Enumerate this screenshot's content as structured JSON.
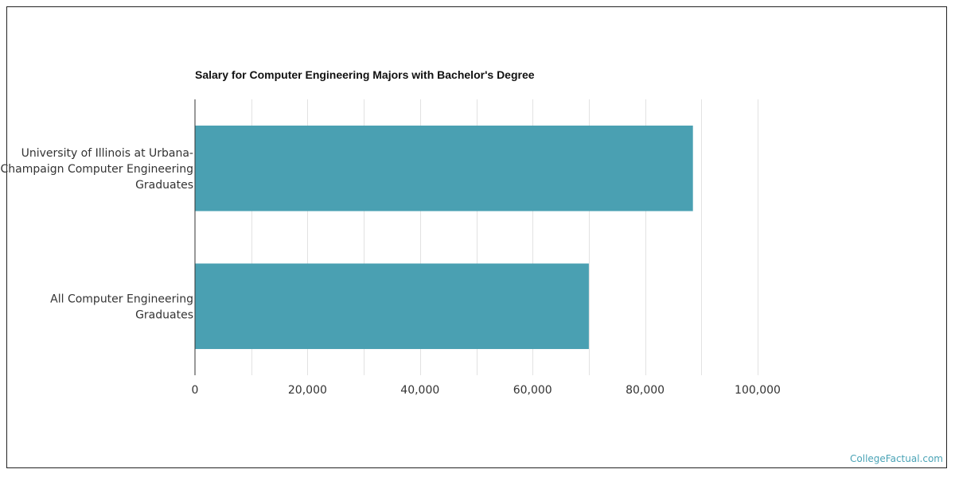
{
  "chart_data": {
    "type": "bar",
    "orientation": "horizontal",
    "title": "Salary for Computer Engineering Majors with Bachelor's Degree",
    "categories": [
      [
        "University of Illinois at Urbana-",
        "Champaign Computer Engineering",
        "Graduates"
      ],
      [
        "All Computer Engineering",
        "Graduates"
      ]
    ],
    "values": [
      88500,
      70000
    ],
    "xlim": [
      0,
      100000
    ],
    "x_ticks": [
      0,
      20000,
      40000,
      60000,
      80000,
      100000
    ],
    "x_tick_labels": [
      "0",
      "20,000",
      "40,000",
      "60,000",
      "80,000",
      "100,000"
    ],
    "xlabel": "",
    "ylabel": "",
    "grid": true,
    "bar_color": "#4aa0b2"
  },
  "watermark": "CollegeFactual.com"
}
